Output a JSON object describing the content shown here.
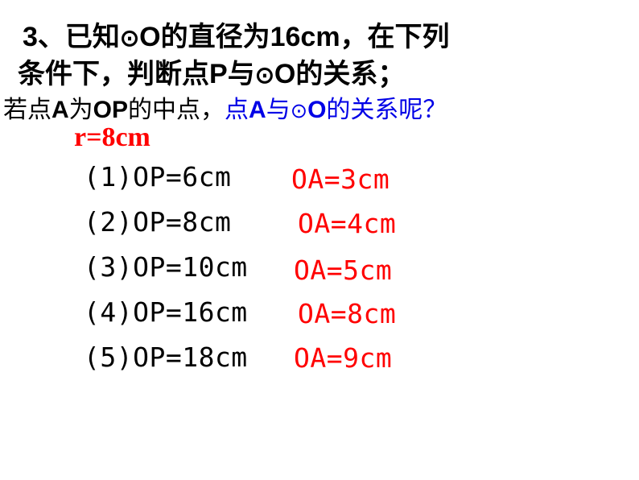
{
  "title": {
    "line1_prefix": "3",
    "line1_text1": "、已知",
    "line1_circle": "⊙",
    "line1_O": "O",
    "line1_text2": "的直径为",
    "line1_num": "16cm",
    "line1_text3": "，在下列",
    "line2_text1": "条件下，判断点",
    "line2_P": "P",
    "line2_text2": "与",
    "line2_circle": "⊙",
    "line2_O": "O",
    "line2_text3": "的关系；"
  },
  "subtitle": {
    "text1": "若点",
    "A": "A",
    "text2": "为",
    "OP": "OP",
    "text3": "的中点，",
    "blue_text1": "点",
    "blue_A": "A",
    "blue_text2": "与",
    "blue_circle": "⊙",
    "blue_O": "O",
    "blue_text3": "的关系呢？"
  },
  "radius": "r=8cm",
  "items": [
    {
      "op": "(1)OP=6cm",
      "oa": "OA=3cm"
    },
    {
      "op": "(2)OP=8cm",
      "oa": "OA=4cm"
    },
    {
      "op": "(3)OP=10cm",
      "oa": "OA=5cm"
    },
    {
      "op": "(4)OP=16cm",
      "oa": "OA=8cm"
    },
    {
      "op": "(5)OP=18cm",
      "oa": "OA=9cm"
    }
  ],
  "colors": {
    "black": "#000000",
    "red": "#ff0000",
    "blue": "#0000e6",
    "background": "#ffffff"
  }
}
